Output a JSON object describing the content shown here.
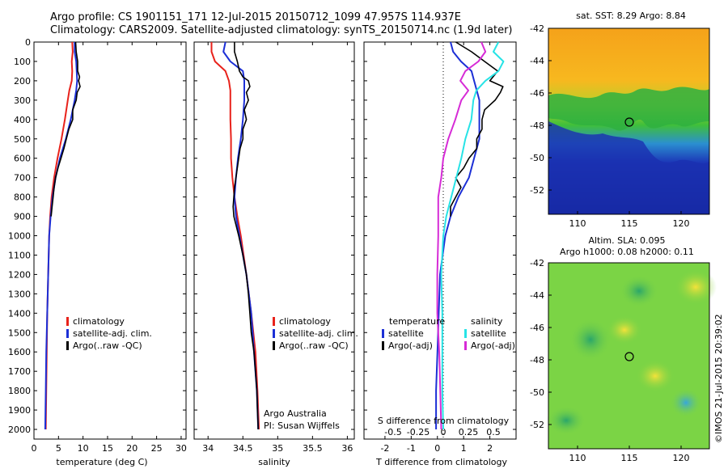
{
  "titles": {
    "line1": "Argo profile: CS 1901151_171 12-Jul-2015 20150712_1099 47.957S 114.937E",
    "line2": "Climatology: CARS2009. Satellite-adjusted climatology: synTS_20150714.nc (1.9d later)"
  },
  "legend": {
    "climatology": "climatology",
    "satellite_adj": "satellite-adj. clim.",
    "argo_raw": "Argo(..raw -QC)",
    "temperature_hdr": "temperature",
    "salinity_hdr": "salinity",
    "satellite": "satellite",
    "argo_adj": "Argo(-adj)"
  },
  "credits": {
    "line1": "Argo Australia",
    "line2": "PI: Susan Wijffels",
    "stamp": "©IMOS 21-Jul-2015 20:39:02"
  },
  "colors": {
    "climatology": "#e8221b",
    "satellite": "#1c2fd6",
    "argo": "#000000",
    "s_satellite": "#27e3e6",
    "s_argo": "#d62bd6"
  },
  "maps": {
    "sst_title": "sat. SST: 8.29  Argo: 8.84",
    "sla_title1": "Altim. SLA: 0.095",
    "sla_title2": "Argo h1000: 0.08  h2000: 0.11",
    "lat_ticks": [
      "-42",
      "-44",
      "-46",
      "-48",
      "-50",
      "-52"
    ],
    "lon_ticks": [
      "110",
      "115",
      "120"
    ],
    "argo_position": {
      "lon": 114.937,
      "lat": -47.957
    }
  },
  "chart_data": [
    {
      "type": "line",
      "xlabel": "temperature (deg C)",
      "ylabel": "",
      "xlim": [
        0,
        31
      ],
      "ylim": [
        2050,
        0
      ],
      "xticks": [
        "0",
        "5",
        "10",
        "15",
        "20",
        "25",
        "30"
      ],
      "yticks": [
        "0",
        "100",
        "200",
        "300",
        "400",
        "500",
        "600",
        "700",
        "800",
        "900",
        "1000",
        "1100",
        "1200",
        "1300",
        "1400",
        "1500",
        "1600",
        "1700",
        "1800",
        "1900",
        "2000"
      ],
      "series": [
        {
          "name": "climatology",
          "color": "#e8221b",
          "depth": [
            0,
            50,
            100,
            150,
            200,
            250,
            300,
            400,
            500,
            600,
            700,
            800,
            900,
            1000,
            1200,
            1400,
            1600,
            1800,
            2000
          ],
          "values": [
            7.8,
            7.9,
            7.7,
            7.8,
            7.7,
            7.2,
            6.9,
            6.3,
            5.6,
            4.8,
            4.1,
            3.6,
            3.3,
            3.1,
            2.9,
            2.7,
            2.6,
            2.5,
            2.4
          ]
        },
        {
          "name": "satellite-adj. clim.",
          "color": "#1c2fd6",
          "depth": [
            0,
            50,
            100,
            150,
            200,
            250,
            300,
            400,
            500,
            600,
            700,
            800,
            900,
            1000,
            1200,
            1400,
            1600,
            1800,
            2000
          ],
          "values": [
            8.3,
            8.3,
            8.6,
            8.7,
            8.8,
            8.6,
            8.3,
            7.5,
            6.5,
            5.3,
            4.4,
            3.8,
            3.4,
            3.1,
            2.9,
            2.7,
            2.5,
            2.4,
            2.3
          ]
        },
        {
          "name": "Argo(..raw -QC)",
          "color": "#000000",
          "depth": [
            0,
            50,
            100,
            150,
            180,
            200,
            230,
            260,
            300,
            350,
            400,
            450,
            500,
            550,
            600,
            650,
            700,
            750,
            800,
            850,
            900
          ],
          "values": [
            8.5,
            8.6,
            8.9,
            8.9,
            9.3,
            9.1,
            9.4,
            8.8,
            8.6,
            7.9,
            7.9,
            7.1,
            6.6,
            6.1,
            5.5,
            4.9,
            4.4,
            4.1,
            3.9,
            3.7,
            3.5
          ]
        }
      ]
    },
    {
      "type": "line",
      "xlabel": "salinity",
      "ylabel": "",
      "xlim": [
        33.8,
        36.1
      ],
      "ylim": [
        2050,
        0
      ],
      "xticks": [
        "34",
        "34.5",
        "35",
        "35.5",
        "36"
      ],
      "series": [
        {
          "name": "climatology",
          "color": "#e8221b",
          "depth": [
            0,
            50,
            100,
            150,
            200,
            250,
            300,
            400,
            500,
            600,
            700,
            800,
            900,
            1000,
            1200,
            1400,
            1600,
            1800,
            2000
          ],
          "values": [
            34.05,
            34.05,
            34.1,
            34.25,
            34.3,
            34.32,
            34.32,
            34.32,
            34.33,
            34.33,
            34.35,
            34.38,
            34.42,
            34.47,
            34.55,
            34.62,
            34.68,
            34.71,
            34.73
          ]
        },
        {
          "name": "satellite-adj. clim.",
          "color": "#1c2fd6",
          "depth": [
            0,
            50,
            100,
            150,
            200,
            250,
            300,
            400,
            500,
            600,
            700,
            800,
            900,
            1000,
            1200,
            1400,
            1600,
            1800,
            2000
          ],
          "values": [
            34.25,
            34.22,
            34.32,
            34.5,
            34.52,
            34.52,
            34.52,
            34.5,
            34.47,
            34.43,
            34.4,
            34.38,
            34.4,
            34.45,
            34.55,
            34.62,
            34.66,
            34.7,
            34.72
          ]
        },
        {
          "name": "Argo(..raw -QC)",
          "color": "#000000",
          "depth": [
            0,
            50,
            100,
            150,
            180,
            200,
            230,
            260,
            300,
            350,
            400,
            450,
            500,
            550,
            600,
            650,
            700,
            750,
            800,
            850,
            900,
            1000,
            1100,
            1200,
            1300,
            1400,
            1500,
            1600,
            1700,
            1800,
            1900,
            2000
          ],
          "values": [
            34.38,
            34.38,
            34.42,
            34.45,
            34.5,
            34.58,
            34.6,
            34.55,
            34.58,
            34.52,
            34.55,
            34.5,
            34.5,
            34.46,
            34.44,
            34.42,
            34.4,
            34.38,
            34.37,
            34.36,
            34.37,
            34.44,
            34.5,
            34.55,
            34.58,
            34.6,
            34.62,
            34.66,
            34.68,
            34.7,
            34.71,
            34.72
          ]
        }
      ]
    },
    {
      "type": "line",
      "xlabel": "T difference from climatology",
      "secondary_xlabel": "S difference from climatology",
      "ylabel": "",
      "xlim": [
        -2.8,
        3.0
      ],
      "ylim": [
        2050,
        0
      ],
      "xticks": [
        "-2",
        "-1",
        "0",
        "1",
        "2"
      ],
      "secondary_xticks": [
        "-0.5",
        "-0.25",
        "0",
        "0.25",
        "0.5"
      ],
      "series": [
        {
          "name": "temperature satellite",
          "color": "#1c2fd6",
          "depth": [
            0,
            50,
            100,
            150,
            200,
            250,
            300,
            400,
            500,
            600,
            700,
            800,
            900,
            1000,
            1200,
            1400,
            1600,
            1800,
            2000
          ],
          "values": [
            0.5,
            0.6,
            0.9,
            1.3,
            1.4,
            1.5,
            1.6,
            1.6,
            1.6,
            1.4,
            1.2,
            0.8,
            0.5,
            0.3,
            0.1,
            0.05,
            0.0,
            -0.05,
            -0.05
          ]
        },
        {
          "name": "temperature Argo(-adj)",
          "color": "#000000",
          "depth": [
            0,
            50,
            100,
            150,
            200,
            230,
            260,
            300,
            350,
            400,
            450,
            500,
            550,
            600,
            650,
            700,
            750,
            800,
            850,
            900
          ],
          "values": [
            0.7,
            1.3,
            1.8,
            2.3,
            2.0,
            2.5,
            2.4,
            2.2,
            1.8,
            1.7,
            1.7,
            1.5,
            1.5,
            1.2,
            1.0,
            0.7,
            0.9,
            0.7,
            0.5,
            0.5
          ]
        },
        {
          "name": "salinity satellite",
          "color": "#27e3e6",
          "depth": [
            0,
            50,
            100,
            150,
            200,
            250,
            300,
            400,
            500,
            600,
            700,
            800,
            900,
            1000,
            1200,
            1400,
            1600,
            1800,
            2000
          ],
          "values": [
            0.55,
            0.5,
            0.6,
            0.55,
            0.42,
            0.33,
            0.3,
            0.28,
            0.22,
            0.18,
            0.13,
            0.08,
            0.03,
            0.0,
            -0.02,
            -0.01,
            -0.01,
            -0.01,
            0.0
          ]
        },
        {
          "name": "salinity Argo(-adj)",
          "color": "#d62bd6",
          "depth": [
            0,
            50,
            100,
            150,
            200,
            250,
            300,
            400,
            500,
            600,
            700,
            800,
            900,
            1000,
            1200,
            1400,
            1600,
            1800,
            2000
          ],
          "values": [
            0.38,
            0.42,
            0.35,
            0.22,
            0.17,
            0.25,
            0.18,
            0.12,
            0.05,
            0.0,
            -0.02,
            -0.05,
            -0.05,
            -0.05,
            -0.06,
            -0.06,
            -0.04,
            -0.03,
            -0.02
          ]
        }
      ]
    }
  ]
}
